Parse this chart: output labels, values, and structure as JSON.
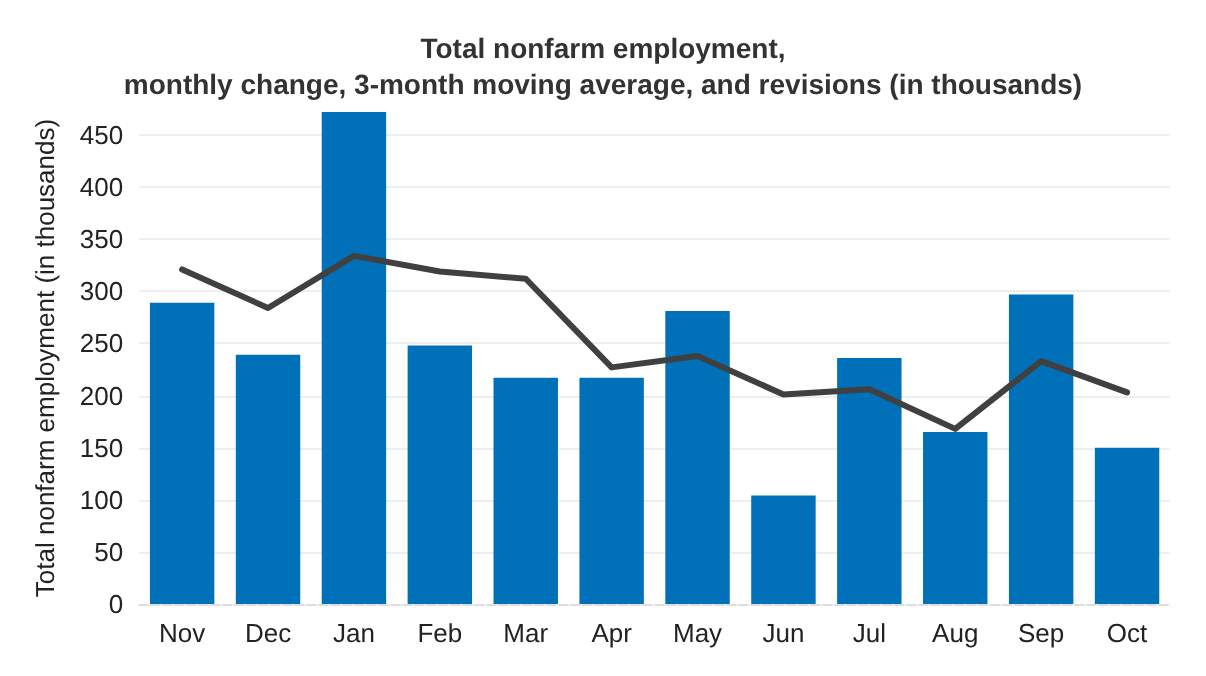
{
  "chart_data": {
    "type": "bar",
    "title": "Total nonfarm employment,\nmonthly change, 3-month moving average, and revisions (in thousands)",
    "ylabel": "Total nonfarm employment (in thousands)",
    "categories": [
      "Nov",
      "Dec",
      "Jan",
      "Feb",
      "Mar",
      "Apr",
      "May",
      "Jun",
      "Jul",
      "Aug",
      "Sep",
      "Oct"
    ],
    "series": [
      {
        "color": "#0070b8",
        "values": [
          289,
          239,
          472,
          248,
          217,
          217,
          281,
          104,
          236,
          165,
          297,
          150
        ]
      },
      {
        "type": "line",
        "color": "#404040",
        "values": [
          321,
          284,
          334,
          319,
          312,
          227,
          238,
          201,
          206,
          168,
          233,
          203
        ]
      }
    ],
    "ylim": [
      0,
      472
    ],
    "yticks": [
      0,
      50,
      100,
      150,
      200,
      250,
      300,
      350,
      400,
      450
    ],
    "grid": "y",
    "marker": "none",
    "line_style": "solid"
  }
}
